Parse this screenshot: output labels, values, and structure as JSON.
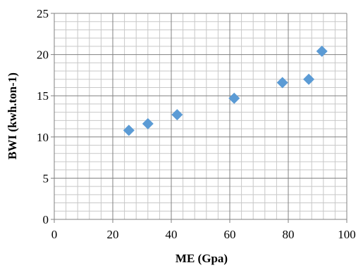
{
  "chart_data": {
    "type": "scatter",
    "xlabel": "ME (Gpa)",
    "ylabel": "BWI (kwh.ton-1)",
    "xlim": [
      0,
      100
    ],
    "ylim": [
      0,
      25
    ],
    "x_major_ticks": [
      0,
      20,
      40,
      60,
      80,
      100
    ],
    "y_major_ticks": [
      0,
      5,
      10,
      15,
      20,
      25
    ],
    "x_tick_labels": [
      "0",
      "20",
      "40",
      "60",
      "80",
      "100"
    ],
    "y_tick_labels": [
      "0",
      "5",
      "10",
      "15",
      "20",
      "25"
    ],
    "grid": "major and minor",
    "marker": "diamond",
    "marker_color": "#5b9bd5",
    "major_grid_color": "#808080",
    "minor_grid_color": "#c8c8c8",
    "series": [
      {
        "points": [
          {
            "x": 25.5,
            "y": 10.8
          },
          {
            "x": 32,
            "y": 11.6
          },
          {
            "x": 42,
            "y": 12.7
          },
          {
            "x": 61.5,
            "y": 14.7
          },
          {
            "x": 78,
            "y": 16.6
          },
          {
            "x": 87,
            "y": 17.0
          },
          {
            "x": 91.5,
            "y": 20.4
          }
        ]
      }
    ]
  }
}
